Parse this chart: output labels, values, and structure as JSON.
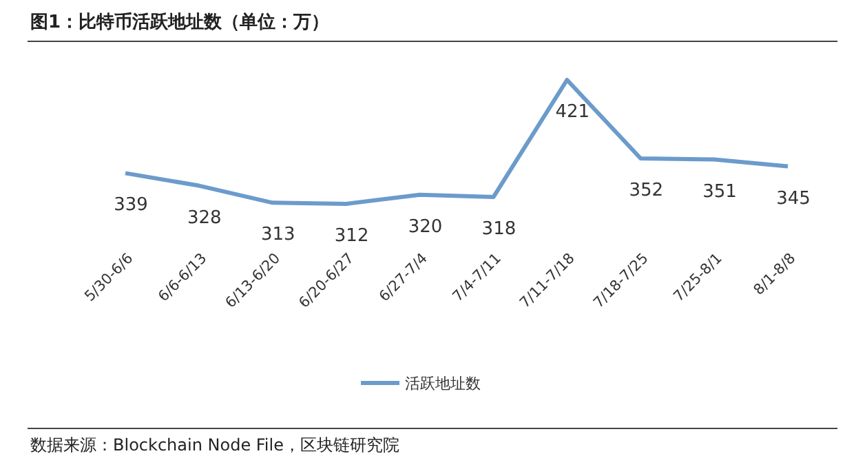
{
  "chart_data": {
    "type": "line",
    "title": "图1：比特币活跃地址数（单位：万）",
    "categories": [
      "5/30-6/6",
      "6/6-6/13",
      "6/13-6/20",
      "6/20-6/27",
      "6/27-7/4",
      "7/4-7/11",
      "7/11-7/18",
      "7/18-7/25",
      "7/25-8/1",
      "8/1-8/8"
    ],
    "series": [
      {
        "name": "活跃地址数",
        "color": "#6b9bcb",
        "values": [
          339,
          328,
          313,
          312,
          320,
          318,
          421,
          352,
          351,
          345
        ]
      }
    ],
    "data_labels": true,
    "legend": "bottom",
    "marker": "none",
    "annotations": [
      "数据来源：Blockchain Node File，区块链研究院"
    ]
  }
}
